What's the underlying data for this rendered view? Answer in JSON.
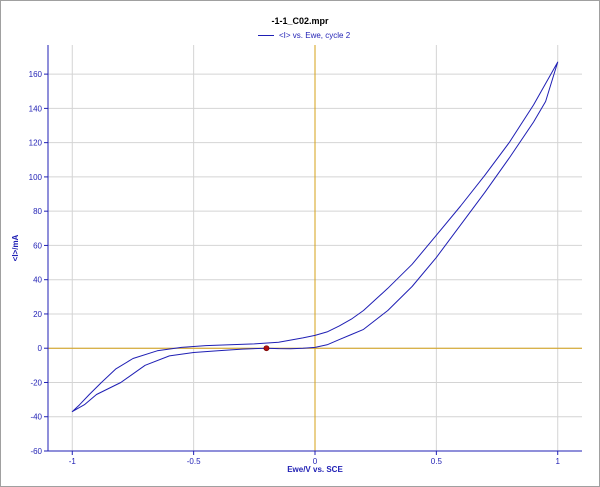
{
  "chart_data": {
    "type": "line",
    "title": "-1-1_C02.mpr",
    "xlabel": "Ewe/V vs. SCE",
    "ylabel": "<I>/mA",
    "xlim": [
      -1.1,
      1.1
    ],
    "ylim": [
      -60,
      177
    ],
    "xticks": [
      -1,
      -0.5,
      0,
      0.5,
      1
    ],
    "xtick_labels": [
      "-1",
      "-0.5",
      "0",
      "0.5",
      "1"
    ],
    "yticks": [
      -60,
      -40,
      -20,
      0,
      20,
      40,
      60,
      80,
      100,
      120,
      140,
      160
    ],
    "ytick_labels": [
      "-60",
      "-40",
      "-20",
      "0",
      "20",
      "40",
      "60",
      "80",
      "100",
      "120",
      "140",
      "160"
    ],
    "grid": true,
    "legend_position": "top-center",
    "colors": {
      "series": "#1f1fb4",
      "zero_lines": "#d4a017",
      "marker": "#b01010",
      "axes": "#1f1fb4"
    },
    "series": [
      {
        "name": "<I> vs. Ewe, cycle 2",
        "x": [
          -0.2,
          -0.3,
          -0.4,
          -0.5,
          -0.6,
          -0.7,
          -0.8,
          -0.9,
          -0.95,
          -1.0,
          -0.97,
          -0.93,
          -0.88,
          -0.82,
          -0.75,
          -0.65,
          -0.55,
          -0.45,
          -0.35,
          -0.25,
          -0.15,
          -0.05,
          0.0,
          0.05,
          0.1,
          0.15,
          0.2,
          0.3,
          0.4,
          0.5,
          0.6,
          0.7,
          0.8,
          0.9,
          1.0,
          0.95,
          0.9,
          0.8,
          0.7,
          0.6,
          0.5,
          0.4,
          0.3,
          0.2,
          0.15,
          0.1,
          0.05,
          0.0,
          -0.05,
          -0.1,
          -0.15,
          -0.2
        ],
        "y": [
          0,
          -0.5,
          -1.5,
          -2.5,
          -4.5,
          -10,
          -20,
          -27,
          -33,
          -37,
          -33,
          -27,
          -20,
          -12,
          -6,
          -1.5,
          0.5,
          1.5,
          2,
          2.5,
          3.5,
          6,
          7.5,
          9.5,
          13,
          17,
          22,
          35,
          49,
          66,
          83,
          101,
          120,
          142,
          167,
          144,
          132,
          111,
          91,
          72,
          53,
          36,
          22,
          11,
          8,
          5,
          2,
          0.5,
          0,
          -0.3,
          -0.2,
          0
        ]
      }
    ],
    "marker_point": {
      "x": -0.2,
      "y": 0
    }
  }
}
